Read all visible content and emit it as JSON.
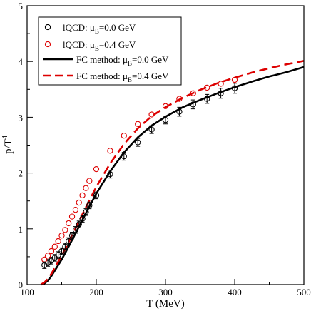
{
  "chart_data": {
    "type": "scatter",
    "xlabel": "T (MeV)",
    "ylabel": "p/T⁴",
    "ylabel_base": "p/T",
    "ylabel_sup": "4",
    "xlim": [
      100,
      500
    ],
    "ylim": [
      0,
      5
    ],
    "xticks": [
      100,
      200,
      300,
      400,
      500
    ],
    "yticks": [
      0,
      1,
      2,
      3,
      4,
      5
    ],
    "x_tick_labels": [
      "100",
      "200",
      "300",
      "400",
      "500"
    ],
    "y_tick_labels": [
      "0",
      "1",
      "2",
      "3",
      "4",
      "5"
    ],
    "grid": false,
    "legend_position": "top-left",
    "series": [
      {
        "label_prefix": "lQCD: μ",
        "label_sub": "B",
        "label_suffix": "=0.0 GeV",
        "kind": "points-with-errorbars",
        "color": "#000000",
        "x": [
          125,
          130,
          135,
          140,
          145,
          150,
          155,
          160,
          165,
          170,
          175,
          180,
          185,
          190,
          200,
          220,
          240,
          260,
          280,
          300,
          320,
          340,
          360,
          380,
          400
        ],
        "y": [
          0.35,
          0.39,
          0.43,
          0.48,
          0.53,
          0.6,
          0.68,
          0.78,
          0.88,
          0.98,
          1.08,
          1.18,
          1.3,
          1.42,
          1.6,
          1.98,
          2.3,
          2.55,
          2.78,
          2.95,
          3.1,
          3.23,
          3.33,
          3.43,
          3.52
        ],
        "err": [
          0.06,
          0.06,
          0.06,
          0.06,
          0.06,
          0.06,
          0.06,
          0.06,
          0.06,
          0.06,
          0.06,
          0.06,
          0.06,
          0.06,
          0.06,
          0.07,
          0.07,
          0.07,
          0.07,
          0.07,
          0.08,
          0.08,
          0.08,
          0.09,
          0.09
        ]
      },
      {
        "label_prefix": "lQCD: μ",
        "label_sub": "B",
        "label_suffix": "=0.4 GeV",
        "kind": "points-with-errorbars",
        "color": "#dd0000",
        "x": [
          125,
          130,
          135,
          140,
          145,
          150,
          155,
          160,
          165,
          170,
          175,
          180,
          185,
          190,
          200,
          220,
          240,
          260,
          280,
          300,
          320,
          340,
          360,
          380,
          400
        ],
        "y": [
          0.45,
          0.52,
          0.6,
          0.68,
          0.78,
          0.88,
          0.98,
          1.1,
          1.22,
          1.34,
          1.47,
          1.6,
          1.73,
          1.86,
          2.07,
          2.4,
          2.67,
          2.88,
          3.05,
          3.2,
          3.33,
          3.43,
          3.53,
          3.6,
          3.67
        ]
      },
      {
        "label_prefix": "FC method: μ",
        "label_sub": "B",
        "label_suffix": "=0.0 GeV",
        "kind": "solid-line",
        "color": "#000000",
        "x": [
          120,
          125,
          130,
          135,
          140,
          145,
          150,
          160,
          170,
          180,
          190,
          200,
          220,
          240,
          260,
          280,
          300,
          325,
          350,
          375,
          400,
          425,
          450,
          475,
          500
        ],
        "y": [
          0.0,
          0.02,
          0.07,
          0.15,
          0.25,
          0.35,
          0.45,
          0.68,
          0.92,
          1.16,
          1.4,
          1.63,
          2.03,
          2.37,
          2.64,
          2.85,
          3.01,
          3.18,
          3.31,
          3.43,
          3.54,
          3.64,
          3.73,
          3.81,
          3.9
        ]
      },
      {
        "label_prefix": "FC method: μ",
        "label_sub": "B",
        "label_suffix": "=0.4 GeV",
        "kind": "dashed-line",
        "color": "#dd0000",
        "x": [
          120,
          125,
          130,
          135,
          140,
          145,
          150,
          160,
          170,
          180,
          190,
          200,
          220,
          240,
          260,
          280,
          300,
          325,
          350,
          375,
          400,
          425,
          450,
          475,
          500
        ],
        "y": [
          0.0,
          0.04,
          0.1,
          0.19,
          0.3,
          0.41,
          0.52,
          0.76,
          1.01,
          1.26,
          1.51,
          1.75,
          2.17,
          2.52,
          2.8,
          3.02,
          3.18,
          3.35,
          3.49,
          3.61,
          3.71,
          3.8,
          3.88,
          3.95,
          4.01
        ]
      }
    ]
  }
}
